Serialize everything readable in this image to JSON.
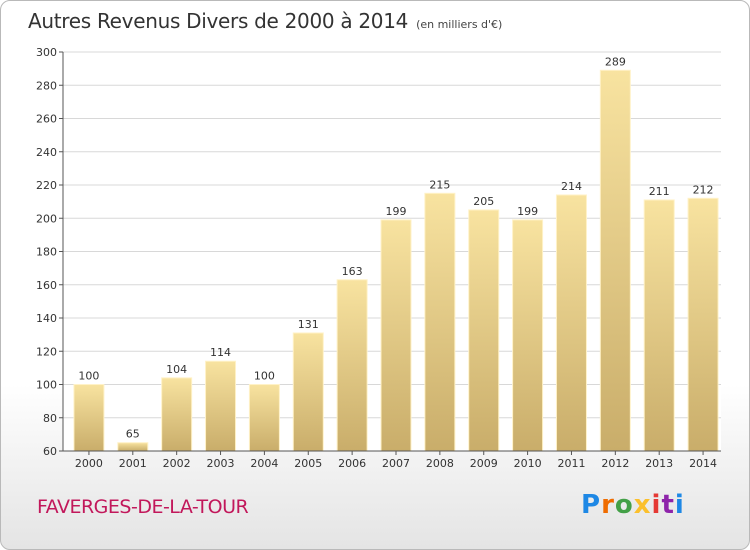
{
  "title": "Autres Revenus Divers de 2000 à 2014",
  "subtitle": "(en milliers d'€)",
  "place": "FAVERGES-DE-LA-TOUR",
  "logo_letters": [
    "P",
    "r",
    "o",
    "x",
    "i",
    "t",
    "i"
  ],
  "colors": {
    "bar_light": "#f8e3a0",
    "bar_dark": "#c9ad6a",
    "grid": "#d8d8d8",
    "town": "#c2185b"
  },
  "chart_data": {
    "type": "bar",
    "title": "Autres Revenus Divers de 2000 à 2014",
    "subtitle": "(en milliers d'€)",
    "xlabel": "",
    "ylabel": "",
    "categories": [
      "2000",
      "2001",
      "2002",
      "2003",
      "2004",
      "2005",
      "2006",
      "2007",
      "2008",
      "2009",
      "2010",
      "2011",
      "2012",
      "2013",
      "2014"
    ],
    "values": [
      100,
      65,
      104,
      114,
      100,
      131,
      163,
      199,
      215,
      205,
      199,
      214,
      289,
      211,
      212
    ],
    "ylim": [
      60,
      300
    ],
    "yticks": [
      60,
      80,
      100,
      120,
      140,
      160,
      180,
      200,
      220,
      240,
      260,
      280,
      300
    ],
    "grid": true,
    "legend": "none"
  }
}
